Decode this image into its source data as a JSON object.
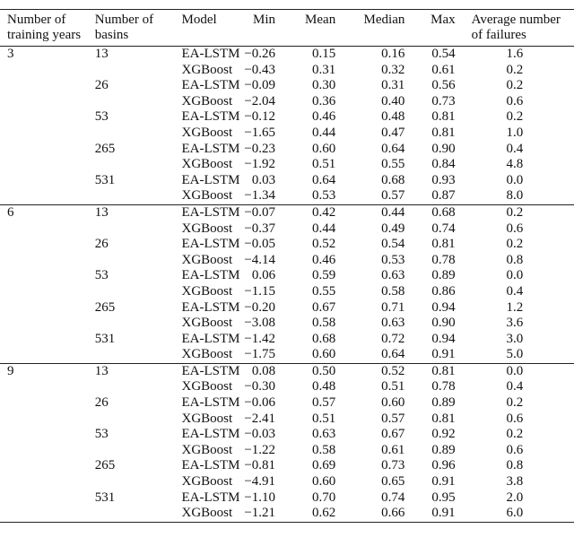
{
  "table": {
    "headers": [
      "Number of training years",
      "Number of basins",
      "Model",
      "Min",
      "Mean",
      "Median",
      "Max",
      "Average number of failures"
    ],
    "groups": [
      {
        "years": "3",
        "rows": [
          {
            "basins": "13",
            "model": "EA-LSTM",
            "min": "−0.26",
            "mean": "0.15",
            "median": "0.16",
            "max": "0.54",
            "failures": "1.6"
          },
          {
            "basins": "",
            "model": "XGBoost",
            "min": "−0.43",
            "mean": "0.31",
            "median": "0.32",
            "max": "0.61",
            "failures": "0.2"
          },
          {
            "basins": "26",
            "model": "EA-LSTM",
            "min": "−0.09",
            "mean": "0.30",
            "median": "0.31",
            "max": "0.56",
            "failures": "0.2"
          },
          {
            "basins": "",
            "model": "XGBoost",
            "min": "−2.04",
            "mean": "0.36",
            "median": "0.40",
            "max": "0.73",
            "failures": "0.6"
          },
          {
            "basins": "53",
            "model": "EA-LSTM",
            "min": "−0.12",
            "mean": "0.46",
            "median": "0.48",
            "max": "0.81",
            "failures": "0.2"
          },
          {
            "basins": "",
            "model": "XGBoost",
            "min": "−1.65",
            "mean": "0.44",
            "median": "0.47",
            "max": "0.81",
            "failures": "1.0"
          },
          {
            "basins": "265",
            "model": "EA-LSTM",
            "min": "−0.23",
            "mean": "0.60",
            "median": "0.64",
            "max": "0.90",
            "failures": "0.4"
          },
          {
            "basins": "",
            "model": "XGBoost",
            "min": "−1.92",
            "mean": "0.51",
            "median": "0.55",
            "max": "0.84",
            "failures": "4.8"
          },
          {
            "basins": "531",
            "model": "EA-LSTM",
            "min": "0.03",
            "mean": "0.64",
            "median": "0.68",
            "max": "0.93",
            "failures": "0.0"
          },
          {
            "basins": "",
            "model": "XGBoost",
            "min": "−1.34",
            "mean": "0.53",
            "median": "0.57",
            "max": "0.87",
            "failures": "8.0"
          }
        ]
      },
      {
        "years": "6",
        "rows": [
          {
            "basins": "13",
            "model": "EA-LSTM",
            "min": "−0.07",
            "mean": "0.42",
            "median": "0.44",
            "max": "0.68",
            "failures": "0.2"
          },
          {
            "basins": "",
            "model": "XGBoost",
            "min": "−0.37",
            "mean": "0.44",
            "median": "0.49",
            "max": "0.74",
            "failures": "0.6"
          },
          {
            "basins": "26",
            "model": "EA-LSTM",
            "min": "−0.05",
            "mean": "0.52",
            "median": "0.54",
            "max": "0.81",
            "failures": "0.2"
          },
          {
            "basins": "",
            "model": "XGBoost",
            "min": "−4.14",
            "mean": "0.46",
            "median": "0.53",
            "max": "0.78",
            "failures": "0.8"
          },
          {
            "basins": "53",
            "model": "EA-LSTM",
            "min": "0.06",
            "mean": "0.59",
            "median": "0.63",
            "max": "0.89",
            "failures": "0.0"
          },
          {
            "basins": "",
            "model": "XGBoost",
            "min": "−1.15",
            "mean": "0.55",
            "median": "0.58",
            "max": "0.86",
            "failures": "0.4"
          },
          {
            "basins": "265",
            "model": "EA-LSTM",
            "min": "−0.20",
            "mean": "0.67",
            "median": "0.71",
            "max": "0.94",
            "failures": "1.2"
          },
          {
            "basins": "",
            "model": "XGBoost",
            "min": "−3.08",
            "mean": "0.58",
            "median": "0.63",
            "max": "0.90",
            "failures": "3.6"
          },
          {
            "basins": "531",
            "model": "EA-LSTM",
            "min": "−1.42",
            "mean": "0.68",
            "median": "0.72",
            "max": "0.94",
            "failures": "3.0"
          },
          {
            "basins": "",
            "model": "XGBoost",
            "min": "−1.75",
            "mean": "0.60",
            "median": "0.64",
            "max": "0.91",
            "failures": "5.0"
          }
        ]
      },
      {
        "years": "9",
        "rows": [
          {
            "basins": "13",
            "model": "EA-LSTM",
            "min": "0.08",
            "mean": "0.50",
            "median": "0.52",
            "max": "0.81",
            "failures": "0.0"
          },
          {
            "basins": "",
            "model": "XGBoost",
            "min": "−0.30",
            "mean": "0.48",
            "median": "0.51",
            "max": "0.78",
            "failures": "0.4"
          },
          {
            "basins": "26",
            "model": "EA-LSTM",
            "min": "−0.06",
            "mean": "0.57",
            "median": "0.60",
            "max": "0.89",
            "failures": "0.2"
          },
          {
            "basins": "",
            "model": "XGBoost",
            "min": "−2.41",
            "mean": "0.51",
            "median": "0.57",
            "max": "0.81",
            "failures": "0.6"
          },
          {
            "basins": "53",
            "model": "EA-LSTM",
            "min": "−0.03",
            "mean": "0.63",
            "median": "0.67",
            "max": "0.92",
            "failures": "0.2"
          },
          {
            "basins": "",
            "model": "XGBoost",
            "min": "−1.22",
            "mean": "0.58",
            "median": "0.61",
            "max": "0.89",
            "failures": "0.6"
          },
          {
            "basins": "265",
            "model": "EA-LSTM",
            "min": "−0.81",
            "mean": "0.69",
            "median": "0.73",
            "max": "0.96",
            "failures": "0.8"
          },
          {
            "basins": "",
            "model": "XGBoost",
            "min": "−4.91",
            "mean": "0.60",
            "median": "0.65",
            "max": "0.91",
            "failures": "3.8"
          },
          {
            "basins": "531",
            "model": "EA-LSTM",
            "min": "−1.10",
            "mean": "0.70",
            "median": "0.74",
            "max": "0.95",
            "failures": "2.0"
          },
          {
            "basins": "",
            "model": "XGBoost",
            "min": "−1.21",
            "mean": "0.62",
            "median": "0.66",
            "max": "0.91",
            "failures": "6.0"
          }
        ]
      }
    ]
  }
}
